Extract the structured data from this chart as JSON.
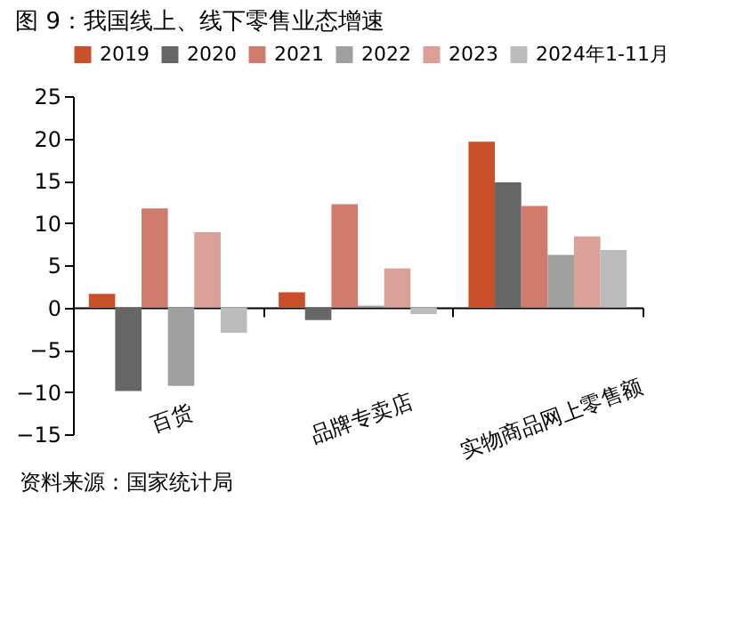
{
  "chart_data": {
    "type": "bar",
    "title": "图 9：我国线上、线下零售业态增速",
    "categories": [
      "百货",
      "品牌专卖店",
      "实物商品网上零售额"
    ],
    "series": [
      {
        "name": "2019",
        "color": "#c8502a",
        "values": [
          1.6,
          1.8,
          19.6
        ]
      },
      {
        "name": "2020",
        "color": "#666666",
        "values": [
          -9.9,
          -1.5,
          14.8
        ]
      },
      {
        "name": "2021",
        "color": "#cf7b6e",
        "values": [
          11.7,
          12.2,
          12.0
        ]
      },
      {
        "name": "2022",
        "color": "#a0a0a0",
        "values": [
          -9.3,
          0.2,
          6.2
        ]
      },
      {
        "name": "2023",
        "color": "#dba098",
        "values": [
          8.9,
          4.6,
          8.4
        ]
      },
      {
        "name": "2024年1-11月",
        "color": "#bcbcbc",
        "values": [
          -3.0,
          -0.8,
          6.8
        ]
      }
    ],
    "ylim": [
      -15,
      25
    ],
    "yticks": [
      -15,
      -10,
      -5,
      0,
      5,
      10,
      15,
      20,
      25
    ],
    "legend": "top",
    "annotations": [
      "资料来源：国家统计局"
    ]
  }
}
